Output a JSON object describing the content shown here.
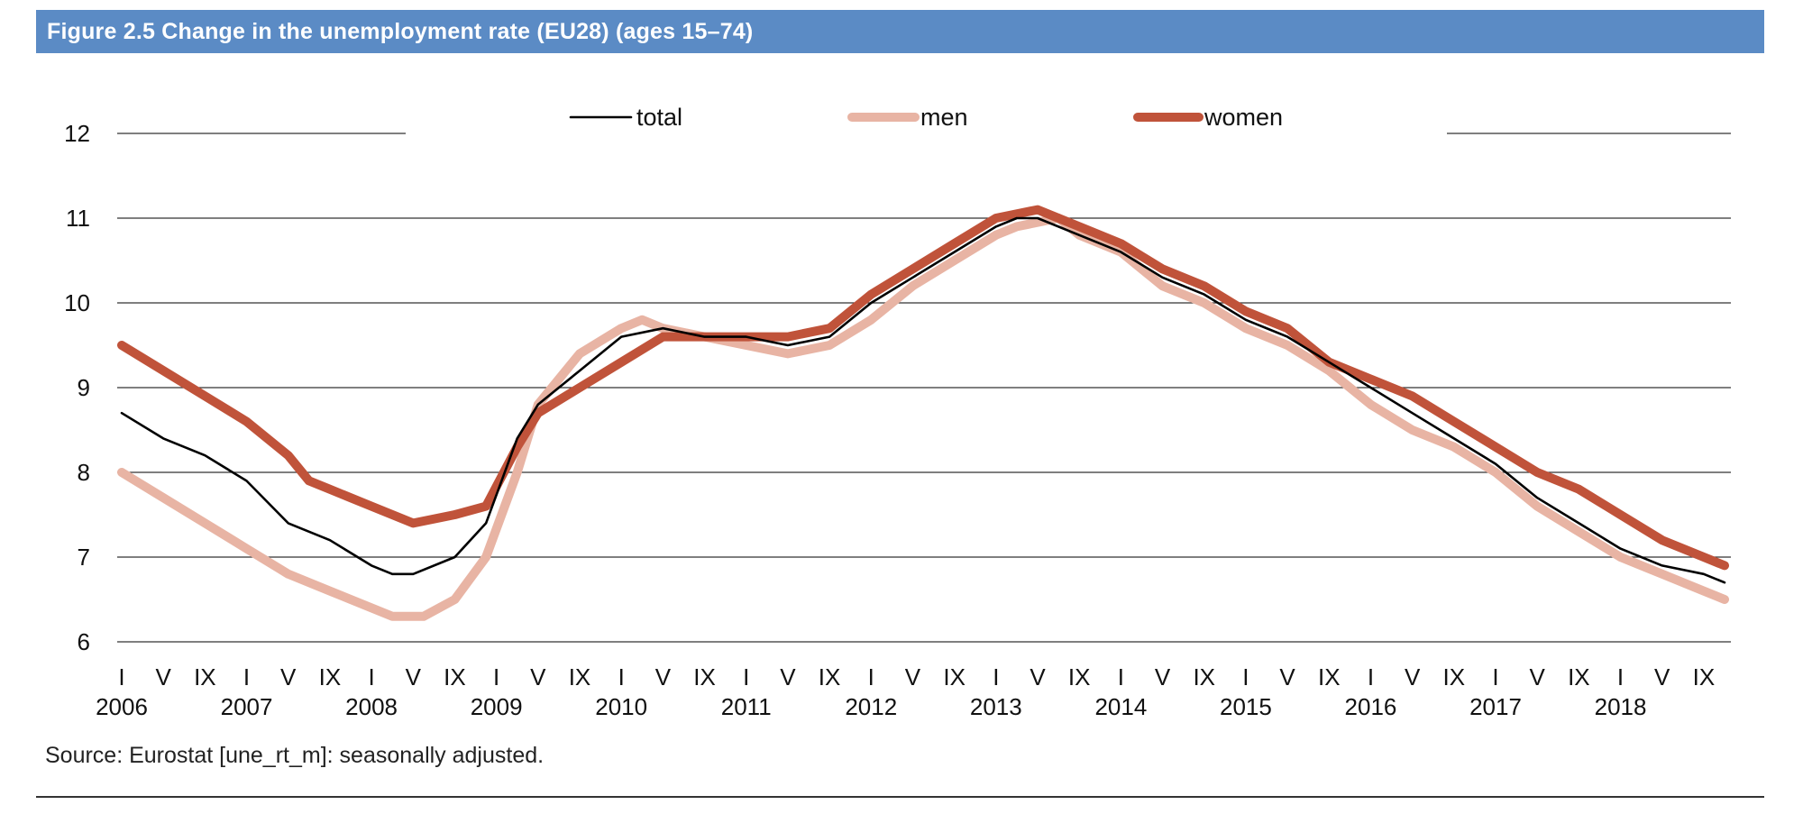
{
  "figure": {
    "title": "Figure 2.5 Change in the unemployment rate (EU28) (ages 15–74)",
    "source": "Source: Eurostat [une_rt_m]: seasonally adjusted.",
    "banner_color": "#5b8bc5"
  },
  "chart_data": {
    "type": "line",
    "title": "",
    "xlabel": "",
    "ylabel": "",
    "ylim": [
      6,
      12
    ],
    "yticks": [
      6,
      7,
      8,
      9,
      10,
      11,
      12
    ],
    "grid": "horizontal",
    "legend_position": "top-center",
    "x_start": "2006-01",
    "x_end": "2018-11",
    "month_tick_labels": [
      "I",
      "V",
      "IX"
    ],
    "years": [
      "2006",
      "2007",
      "2008",
      "2009",
      "2010",
      "2011",
      "2012",
      "2013",
      "2014",
      "2015",
      "2016",
      "2017",
      "2018"
    ],
    "series": [
      {
        "name": "total",
        "color": "#000000",
        "points": [
          [
            "2006-01",
            8.7
          ],
          [
            "2006-05",
            8.4
          ],
          [
            "2006-09",
            8.2
          ],
          [
            "2007-01",
            7.9
          ],
          [
            "2007-05",
            7.4
          ],
          [
            "2007-09",
            7.2
          ],
          [
            "2008-01",
            6.9
          ],
          [
            "2008-03",
            6.8
          ],
          [
            "2008-05",
            6.8
          ],
          [
            "2008-09",
            7.0
          ],
          [
            "2008-12",
            7.4
          ],
          [
            "2009-03",
            8.4
          ],
          [
            "2009-05",
            8.8
          ],
          [
            "2009-09",
            9.2
          ],
          [
            "2010-01",
            9.6
          ],
          [
            "2010-05",
            9.7
          ],
          [
            "2010-09",
            9.6
          ],
          [
            "2011-01",
            9.6
          ],
          [
            "2011-05",
            9.5
          ],
          [
            "2011-09",
            9.6
          ],
          [
            "2012-01",
            10.0
          ],
          [
            "2012-05",
            10.3
          ],
          [
            "2012-09",
            10.6
          ],
          [
            "2013-01",
            10.9
          ],
          [
            "2013-03",
            11.0
          ],
          [
            "2013-05",
            11.0
          ],
          [
            "2013-09",
            10.8
          ],
          [
            "2014-01",
            10.6
          ],
          [
            "2014-05",
            10.3
          ],
          [
            "2014-09",
            10.1
          ],
          [
            "2015-01",
            9.8
          ],
          [
            "2015-05",
            9.6
          ],
          [
            "2015-09",
            9.3
          ],
          [
            "2016-01",
            9.0
          ],
          [
            "2016-05",
            8.7
          ],
          [
            "2016-09",
            8.4
          ],
          [
            "2017-01",
            8.1
          ],
          [
            "2017-05",
            7.7
          ],
          [
            "2017-09",
            7.4
          ],
          [
            "2018-01",
            7.1
          ],
          [
            "2018-05",
            6.9
          ],
          [
            "2018-09",
            6.8
          ],
          [
            "2018-11",
            6.7
          ]
        ]
      },
      {
        "name": "men",
        "color": "#e8b4a4",
        "points": [
          [
            "2006-01",
            8.0
          ],
          [
            "2006-05",
            7.7
          ],
          [
            "2006-09",
            7.4
          ],
          [
            "2007-01",
            7.1
          ],
          [
            "2007-05",
            6.8
          ],
          [
            "2007-09",
            6.6
          ],
          [
            "2008-01",
            6.4
          ],
          [
            "2008-03",
            6.3
          ],
          [
            "2008-06",
            6.3
          ],
          [
            "2008-09",
            6.5
          ],
          [
            "2008-12",
            7.0
          ],
          [
            "2009-03",
            8.0
          ],
          [
            "2009-05",
            8.8
          ],
          [
            "2009-09",
            9.4
          ],
          [
            "2010-01",
            9.7
          ],
          [
            "2010-03",
            9.8
          ],
          [
            "2010-05",
            9.7
          ],
          [
            "2010-09",
            9.6
          ],
          [
            "2011-01",
            9.5
          ],
          [
            "2011-05",
            9.4
          ],
          [
            "2011-09",
            9.5
          ],
          [
            "2012-01",
            9.8
          ],
          [
            "2012-05",
            10.2
          ],
          [
            "2012-09",
            10.5
          ],
          [
            "2013-01",
            10.8
          ],
          [
            "2013-03",
            10.9
          ],
          [
            "2013-07",
            11.0
          ],
          [
            "2013-09",
            10.8
          ],
          [
            "2014-01",
            10.6
          ],
          [
            "2014-05",
            10.2
          ],
          [
            "2014-09",
            10.0
          ],
          [
            "2015-01",
            9.7
          ],
          [
            "2015-05",
            9.5
          ],
          [
            "2015-09",
            9.2
          ],
          [
            "2016-01",
            8.8
          ],
          [
            "2016-05",
            8.5
          ],
          [
            "2016-09",
            8.3
          ],
          [
            "2017-01",
            8.0
          ],
          [
            "2017-05",
            7.6
          ],
          [
            "2017-09",
            7.3
          ],
          [
            "2018-01",
            7.0
          ],
          [
            "2018-05",
            6.8
          ],
          [
            "2018-09",
            6.6
          ],
          [
            "2018-11",
            6.5
          ]
        ]
      },
      {
        "name": "women",
        "color": "#c0533a",
        "points": [
          [
            "2006-01",
            9.5
          ],
          [
            "2006-05",
            9.2
          ],
          [
            "2006-09",
            8.9
          ],
          [
            "2007-01",
            8.6
          ],
          [
            "2007-05",
            8.2
          ],
          [
            "2007-07",
            7.9
          ],
          [
            "2007-09",
            7.8
          ],
          [
            "2008-01",
            7.6
          ],
          [
            "2008-03",
            7.5
          ],
          [
            "2008-05",
            7.4
          ],
          [
            "2008-09",
            7.5
          ],
          [
            "2008-12",
            7.6
          ],
          [
            "2009-03",
            8.3
          ],
          [
            "2009-05",
            8.7
          ],
          [
            "2009-09",
            9.0
          ],
          [
            "2010-01",
            9.3
          ],
          [
            "2010-05",
            9.6
          ],
          [
            "2010-09",
            9.6
          ],
          [
            "2011-01",
            9.6
          ],
          [
            "2011-05",
            9.6
          ],
          [
            "2011-09",
            9.7
          ],
          [
            "2012-01",
            10.1
          ],
          [
            "2012-05",
            10.4
          ],
          [
            "2012-09",
            10.7
          ],
          [
            "2013-01",
            11.0
          ],
          [
            "2013-05",
            11.1
          ],
          [
            "2013-09",
            10.9
          ],
          [
            "2014-01",
            10.7
          ],
          [
            "2014-05",
            10.4
          ],
          [
            "2014-09",
            10.2
          ],
          [
            "2015-01",
            9.9
          ],
          [
            "2015-05",
            9.7
          ],
          [
            "2015-09",
            9.3
          ],
          [
            "2016-01",
            9.1
          ],
          [
            "2016-05",
            8.9
          ],
          [
            "2016-09",
            8.6
          ],
          [
            "2017-01",
            8.3
          ],
          [
            "2017-05",
            8.0
          ],
          [
            "2017-09",
            7.8
          ],
          [
            "2018-01",
            7.5
          ],
          [
            "2018-05",
            7.2
          ],
          [
            "2018-09",
            7.0
          ],
          [
            "2018-11",
            6.9
          ]
        ]
      }
    ]
  }
}
